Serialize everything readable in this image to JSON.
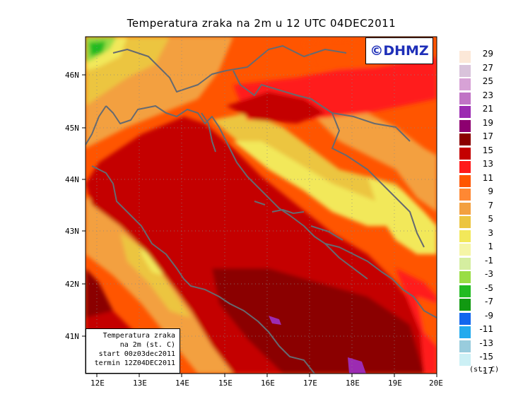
{
  "title": "Temperatura zraka na 2m u 12 UTC 04DEC2011",
  "logo": "©DHMZ",
  "info_box": {
    "line1": "Temperatura zraka",
    "line2": "na 2m (st. C)",
    "line3": "start 00z03dec2011",
    "line4": "termin 12Z04DEC2011"
  },
  "lat_labels": [
    "46N",
    "45N",
    "44N",
    "43N",
    "42N",
    "41N"
  ],
  "lon_labels": [
    "12E",
    "13E",
    "14E",
    "15E",
    "16E",
    "17E",
    "18E",
    "19E",
    "20E"
  ],
  "legend": {
    "unit": "(st. C)",
    "labels": [
      "29",
      "27",
      "25",
      "23",
      "21",
      "19",
      "17",
      "15",
      "13",
      "11",
      "9",
      "7",
      "5",
      "3",
      "1",
      "-1",
      "-3",
      "-5",
      "-7",
      "-9",
      "-11",
      "-13",
      "-15",
      "-17"
    ],
    "colors": [
      "#fce8d8",
      "#d9c3db",
      "#d7a2d6",
      "#c073c5",
      "#9c2bb2",
      "#8d0070",
      "#8b0000",
      "#c40000",
      "#ff1a1a",
      "#ff5500",
      "#ff8833",
      "#f3a040",
      "#ecc540",
      "#f2e85a",
      "#f5f5a6",
      "#d5eea0",
      "#99dd44",
      "#22bb22",
      "#119911",
      "#1166ee",
      "#22aaee",
      "#99ccdd",
      "#ccf0f5",
      "#ffffff"
    ]
  }
}
